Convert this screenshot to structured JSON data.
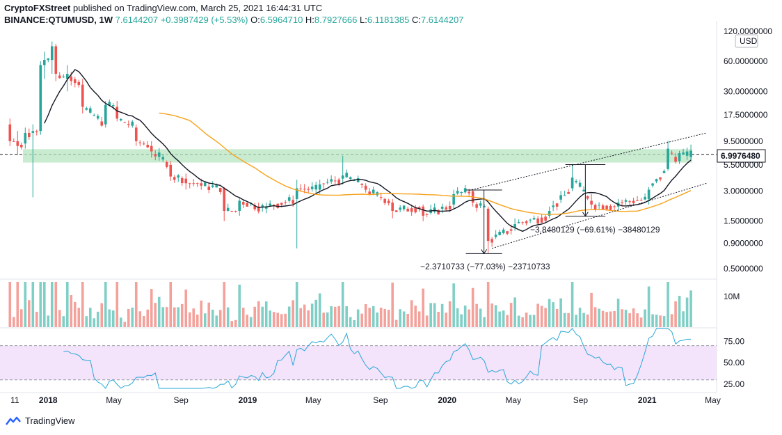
{
  "header": {
    "publisher": "CryptoFXStreet",
    "published_text": "published on TradingView.com, March 25, 2021 16:44:31 UTC",
    "symbol": "BINANCE:QTUMUSD, 1W",
    "last": "7.6144207",
    "change": "+0.3987429 (+5.53%)",
    "o_label": "O:",
    "o": "6.5964710",
    "h_label": "H:",
    "h": "8.7927666",
    "l_label": "L:",
    "l": "6.1181385",
    "c_label": "C:",
    "c": "7.6144207"
  },
  "currency_button": "USD",
  "price_axis_labels": [
    "120.0000000",
    "60.0000000",
    "30.0000000",
    "17.5000000",
    "9.5000000",
    "5.5000000",
    "3.0000000",
    "1.5000000",
    "0.9000000",
    "0.5000000"
  ],
  "current_price_label": "6.9976480",
  "volume_axis_label": "10M",
  "rsi_axis_labels": [
    "75.00",
    "50.00",
    "25.00"
  ],
  "time_axis_labels": [
    "11",
    "2018",
    "May",
    "Sep",
    "2019",
    "May",
    "Sep",
    "2020",
    "May",
    "Sep",
    "2021",
    "May"
  ],
  "annotations": {
    "drop_1": "−2.3710733 (−77.03%) −23710733",
    "drop_2": "−3.8480129 (−69.61%) −38480129"
  },
  "footer": {
    "brand": "TradingView"
  },
  "colors": {
    "up": "#26a69a",
    "down": "#ef5350",
    "vol_up": "#7fcfc6",
    "vol_down": "#f4a19b",
    "ma_short": "#131722",
    "ma_long": "#f7a21b",
    "support_zone": "#b7e4c0",
    "rsi_line": "#2aa7d8",
    "rsi_band": "#f3e3fb"
  },
  "chart_data": {
    "type": "candlestick",
    "symbol": "BINANCE:QTUMUSD",
    "interval": "1W",
    "scale": "log",
    "ylim": [
      0.4,
      130
    ],
    "ohlc": [
      {
        "t": "2017-10-23",
        "o": 14,
        "h": 16,
        "l": 8.5,
        "c": 9.5
      },
      {
        "t": "2017-11-06",
        "o": 9.5,
        "h": 12,
        "l": 6.9,
        "c": 8.5
      },
      {
        "t": "2017-11-20",
        "o": 9,
        "h": 13,
        "l": 8,
        "c": 11.5
      },
      {
        "t": "2017-12-04",
        "o": 11.5,
        "h": 14,
        "l": 2.6,
        "c": 12
      },
      {
        "t": "2017-12-18",
        "o": 12,
        "h": 60,
        "l": 11,
        "c": 55
      },
      {
        "t": "2017-12-25",
        "o": 55,
        "h": 75,
        "l": 40,
        "c": 62
      },
      {
        "t": "2018-01-08",
        "o": 62,
        "h": 95,
        "l": 45,
        "c": 85
      },
      {
        "t": "2018-01-15",
        "o": 85,
        "h": 90,
        "l": 38,
        "c": 45
      },
      {
        "t": "2018-02-05",
        "o": 40,
        "h": 55,
        "l": 30,
        "c": 45
      },
      {
        "t": "2018-03-05",
        "o": 35,
        "h": 40,
        "l": 18,
        "c": 21
      },
      {
        "t": "2018-04-16",
        "o": 14,
        "h": 24,
        "l": 13,
        "c": 22
      },
      {
        "t": "2018-05-07",
        "o": 21,
        "h": 24,
        "l": 15,
        "c": 16
      },
      {
        "t": "2018-06-11",
        "o": 13,
        "h": 14,
        "l": 8.5,
        "c": 9.5
      },
      {
        "t": "2018-07-09",
        "o": 8.5,
        "h": 9.5,
        "l": 6.5,
        "c": 7.5
      },
      {
        "t": "2018-08-13",
        "o": 5.5,
        "h": 6,
        "l": 3.8,
        "c": 4.2
      },
      {
        "t": "2018-09-10",
        "o": 4,
        "h": 4.5,
        "l": 3.1,
        "c": 3.6
      },
      {
        "t": "2018-10-08",
        "o": 3.6,
        "h": 4,
        "l": 3.1,
        "c": 3.4
      },
      {
        "t": "2018-11-19",
        "o": 3.2,
        "h": 3.3,
        "l": 1.5,
        "c": 1.9
      },
      {
        "t": "2018-12-17",
        "o": 1.9,
        "h": 2.6,
        "l": 1.7,
        "c": 2.4
      },
      {
        "t": "2019-02-04",
        "o": 2.0,
        "h": 2.3,
        "l": 1.8,
        "c": 2.1
      },
      {
        "t": "2019-04-01",
        "o": 2.5,
        "h": 3.9,
        "l": 0.8,
        "c": 3.2
      },
      {
        "t": "2019-05-13",
        "o": 3.1,
        "h": 3.9,
        "l": 2.8,
        "c": 3.5
      },
      {
        "t": "2019-06-24",
        "o": 4.0,
        "h": 6.8,
        "l": 3.5,
        "c": 4.3
      },
      {
        "t": "2019-08-05",
        "o": 3.4,
        "h": 3.6,
        "l": 2.9,
        "c": 3.1
      },
      {
        "t": "2019-09-23",
        "o": 2.3,
        "h": 2.5,
        "l": 1.6,
        "c": 1.9
      },
      {
        "t": "2019-11-18",
        "o": 2.1,
        "h": 2.2,
        "l": 1.5,
        "c": 1.7
      },
      {
        "t": "2020-01-13",
        "o": 2.2,
        "h": 3.1,
        "l": 2.0,
        "c": 2.8
      },
      {
        "t": "2020-02-17",
        "o": 3.0,
        "h": 3.1,
        "l": 2.1,
        "c": 2.3
      },
      {
        "t": "2020-03-16",
        "o": 2.0,
        "h": 2.1,
        "l": 0.72,
        "c": 0.95
      },
      {
        "t": "2020-05-04",
        "o": 1.3,
        "h": 1.6,
        "l": 1.2,
        "c": 1.4
      },
      {
        "t": "2020-07-06",
        "o": 1.7,
        "h": 2.1,
        "l": 1.6,
        "c": 1.9
      },
      {
        "t": "2020-08-17",
        "o": 3.2,
        "h": 5.6,
        "l": 3.0,
        "c": 4.1
      },
      {
        "t": "2020-09-21",
        "o": 2.4,
        "h": 2.8,
        "l": 2.0,
        "c": 2.2
      },
      {
        "t": "2020-11-09",
        "o": 2.1,
        "h": 2.5,
        "l": 1.9,
        "c": 2.3
      },
      {
        "t": "2021-01-04",
        "o": 2.5,
        "h": 3.3,
        "l": 2.2,
        "c": 3.1
      },
      {
        "t": "2021-02-08",
        "o": 5.0,
        "h": 9.6,
        "l": 4.8,
        "c": 8.0
      },
      {
        "t": "2021-03-01",
        "o": 6.0,
        "h": 7.6,
        "l": 5.6,
        "c": 7.2
      },
      {
        "t": "2021-03-22",
        "o": 6.596471,
        "h": 8.7927666,
        "l": 6.1181385,
        "c": 7.6144207
      }
    ],
    "horizontal_line": 6.997648,
    "support_zone": [
      5.8,
      7.9
    ],
    "moving_averages": [
      {
        "name": "short",
        "color": "#131722"
      },
      {
        "name": "long",
        "color": "#f7a21b"
      }
    ],
    "volume_axis_label": "10M",
    "rsi": {
      "levels": [
        70,
        30
      ],
      "ylim": [
        20,
        90
      ]
    },
    "drop_measurements": [
      {
        "from": "2020-02-17",
        "from_price": 3.08,
        "to": "2020-03-16",
        "to_price": 0.7089,
        "change": -2.3710733,
        "pct": -77.03
      },
      {
        "from": "2020-08-17",
        "from_price": 5.53,
        "to": "2020-09-21",
        "to_price": 1.68,
        "change": -3.8480129,
        "pct": -69.61
      }
    ],
    "time_labels": [
      "11",
      "2018",
      "May",
      "Sep",
      "2019",
      "May",
      "Sep",
      "2020",
      "May",
      "Sep",
      "2021",
      "May"
    ]
  }
}
